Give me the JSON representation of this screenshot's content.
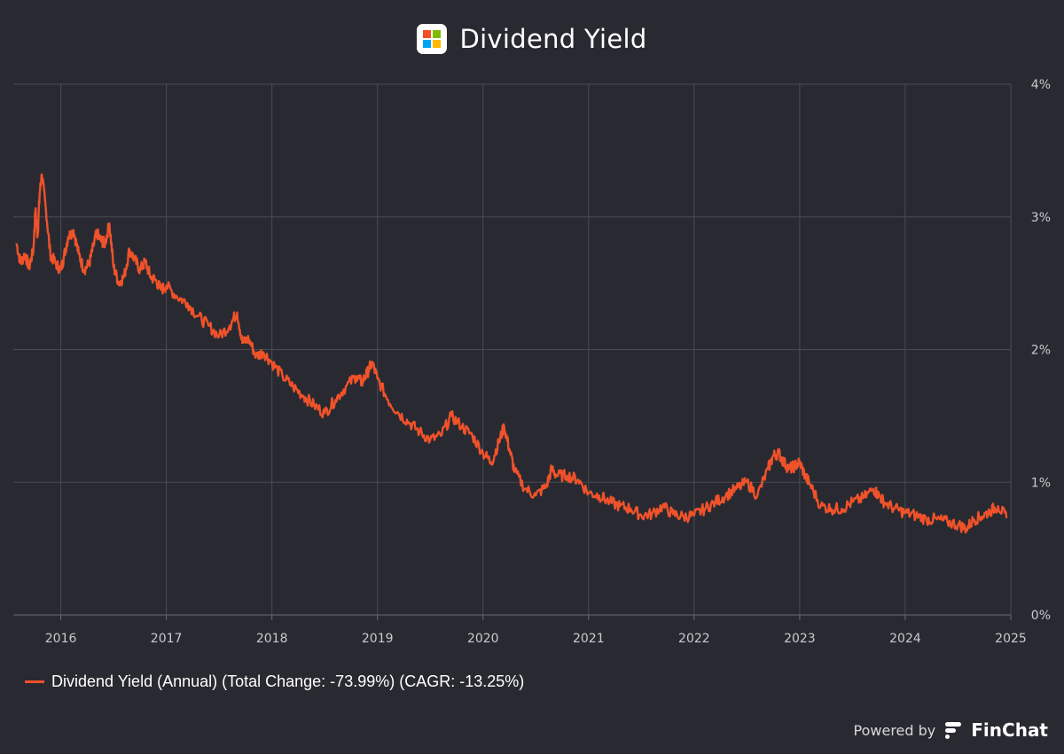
{
  "header": {
    "title": "Dividend Yield",
    "logo": {
      "name": "microsoft-logo-icon",
      "colors": [
        "#f25022",
        "#7fba00",
        "#00a4ef",
        "#ffb900"
      ]
    }
  },
  "legend": {
    "label": "Dividend Yield (Annual) (Total Change: -73.99%) (CAGR: -13.25%)"
  },
  "footer": {
    "powered_by": "Powered by",
    "brand": "FinChat",
    "brand_icon": "finchat-logo-icon"
  },
  "colors": {
    "background": "#292a31",
    "line": "#f0522a",
    "grid": "#4a4b54"
  },
  "chart_data": {
    "type": "line",
    "title": "Dividend Yield",
    "xlabel": "",
    "ylabel": "",
    "x_ticks": [
      "2016",
      "2017",
      "2018",
      "2019",
      "2020",
      "2021",
      "2022",
      "2023",
      "2024",
      "2025"
    ],
    "y_ticks": [
      "0%",
      "1%",
      "2%",
      "3%",
      "4%"
    ],
    "ylim": [
      0,
      4
    ],
    "xlim": [
      2015.55,
      2025.0
    ],
    "y_axis_side": "right",
    "grid": true,
    "legend_position": "bottom-left",
    "series": [
      {
        "name": "Dividend Yield (Annual) (Total Change: -73.99%) (CAGR: -13.25%)",
        "x": [
          2015.58,
          2015.62,
          2015.66,
          2015.7,
          2015.74,
          2015.76,
          2015.78,
          2015.8,
          2015.82,
          2015.86,
          2015.9,
          2015.95,
          2016.0,
          2016.03,
          2016.07,
          2016.12,
          2016.17,
          2016.22,
          2016.27,
          2016.31,
          2016.34,
          2016.38,
          2016.42,
          2016.46,
          2016.5,
          2016.55,
          2016.6,
          2016.65,
          2016.7,
          2016.75,
          2016.8,
          2016.85,
          2016.9,
          2016.95,
          2017.0,
          2017.1,
          2017.2,
          2017.3,
          2017.4,
          2017.5,
          2017.6,
          2017.67,
          2017.72,
          2017.78,
          2017.85,
          2017.92,
          2018.0,
          2018.1,
          2018.2,
          2018.3,
          2018.4,
          2018.5,
          2018.6,
          2018.7,
          2018.8,
          2018.85,
          2018.9,
          2018.95,
          2019.0,
          2019.1,
          2019.2,
          2019.3,
          2019.4,
          2019.5,
          2019.6,
          2019.7,
          2019.8,
          2019.9,
          2020.0,
          2020.08,
          2020.15,
          2020.2,
          2020.25,
          2020.3,
          2020.4,
          2020.5,
          2020.6,
          2020.65,
          2020.7,
          2020.8,
          2020.9,
          2021.0,
          2021.1,
          2021.2,
          2021.3,
          2021.4,
          2021.5,
          2021.6,
          2021.7,
          2021.8,
          2021.9,
          2022.0,
          2022.1,
          2022.2,
          2022.3,
          2022.4,
          2022.5,
          2022.6,
          2022.7,
          2022.75,
          2022.8,
          2022.85,
          2022.9,
          2022.95,
          2023.0,
          2023.05,
          2023.1,
          2023.2,
          2023.3,
          2023.4,
          2023.5,
          2023.6,
          2023.7,
          2023.75,
          2023.8,
          2023.9,
          2024.0,
          2024.1,
          2024.2,
          2024.3,
          2024.4,
          2024.5,
          2024.58,
          2024.65,
          2024.72,
          2024.8,
          2024.88,
          2024.96
        ],
        "y": [
          2.8,
          2.65,
          2.72,
          2.62,
          2.75,
          3.05,
          2.85,
          3.18,
          3.32,
          3.05,
          2.72,
          2.65,
          2.6,
          2.7,
          2.85,
          2.9,
          2.72,
          2.6,
          2.65,
          2.78,
          2.88,
          2.82,
          2.8,
          2.95,
          2.62,
          2.5,
          2.55,
          2.75,
          2.68,
          2.6,
          2.66,
          2.55,
          2.52,
          2.45,
          2.48,
          2.4,
          2.35,
          2.25,
          2.18,
          2.1,
          2.18,
          2.28,
          2.05,
          2.08,
          1.95,
          1.98,
          1.9,
          1.8,
          1.72,
          1.65,
          1.58,
          1.52,
          1.62,
          1.72,
          1.8,
          1.75,
          1.82,
          1.9,
          1.78,
          1.62,
          1.52,
          1.45,
          1.38,
          1.32,
          1.35,
          1.5,
          1.42,
          1.35,
          1.22,
          1.15,
          1.3,
          1.42,
          1.25,
          1.08,
          0.95,
          0.9,
          0.97,
          1.1,
          1.05,
          1.05,
          1.02,
          0.92,
          0.9,
          0.85,
          0.82,
          0.8,
          0.75,
          0.76,
          0.82,
          0.76,
          0.74,
          0.75,
          0.8,
          0.85,
          0.9,
          0.95,
          1.0,
          0.9,
          1.1,
          1.2,
          1.22,
          1.15,
          1.1,
          1.12,
          1.15,
          1.05,
          0.98,
          0.82,
          0.8,
          0.8,
          0.85,
          0.88,
          0.95,
          0.9,
          0.85,
          0.8,
          0.77,
          0.75,
          0.72,
          0.72,
          0.7,
          0.68,
          0.65,
          0.72,
          0.74,
          0.78,
          0.82,
          0.73
        ]
      }
    ]
  }
}
